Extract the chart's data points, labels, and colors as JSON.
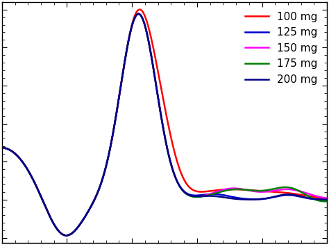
{
  "series": [
    {
      "label": "100 mg",
      "color": "#ff0000",
      "linewidth": 1.8
    },
    {
      "label": "125 mg",
      "color": "#0000cd",
      "linewidth": 1.8
    },
    {
      "label": "150 mg",
      "color": "#ff00ff",
      "linewidth": 1.8
    },
    {
      "label": "175 mg",
      "color": "#008000",
      "linewidth": 1.8
    },
    {
      "label": "200 mg",
      "color": "#00008b",
      "linewidth": 1.8
    }
  ],
  "background_color": "#ffffff",
  "legend_fontsize": 11,
  "legend_loc": "upper right"
}
